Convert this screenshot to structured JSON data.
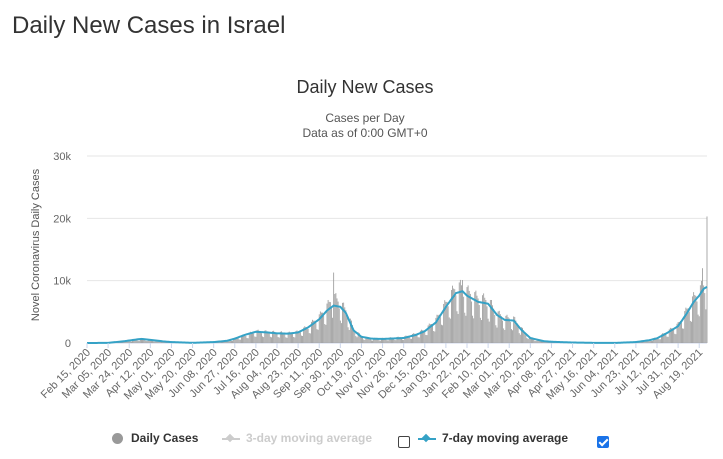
{
  "page": {
    "title": "Daily New Cases in Israel"
  },
  "chart": {
    "title": "Daily New Cases",
    "subtitle_line1": "Cases per Day",
    "subtitle_line2": "Data as of 0:00 GMT+0"
  },
  "legend": {
    "daily_cases": "Daily Cases",
    "ma3": "3-day moving average",
    "ma7": "7-day moving average",
    "ma3_checked": false,
    "ma7_checked": true
  },
  "colors": {
    "bars": "#999999",
    "ma7": "#35a2c6",
    "ma3_disabled": "#cccccc",
    "grid": "#e6e6e6"
  },
  "chart_data": {
    "type": "bar",
    "title": "Daily New Cases",
    "subtitle": [
      "Cases per Day",
      "Data as of 0:00 GMT+0"
    ],
    "xlabel": "",
    "ylabel": "Novel Coronavirus Daily Cases",
    "ylim": [
      0,
      30000
    ],
    "yticks": [
      0,
      10000,
      20000,
      30000
    ],
    "ytick_labels": [
      "0",
      "10k",
      "20k",
      "30k"
    ],
    "x_start": "2020-02-15",
    "x_end": "2021-08-26",
    "xtick_labels": [
      "Feb 15, 2020",
      "Mar 05, 2020",
      "Mar 24, 2020",
      "Apr 12, 2020",
      "May 01, 2020",
      "May 20, 2020",
      "Jun 08, 2020",
      "Jun 27, 2020",
      "Jul 16, 2020",
      "Aug 04, 2020",
      "Aug 23, 2020",
      "Sep 11, 2020",
      "Sep 30, 2020",
      "Oct 19, 2020",
      "Nov 07, 2020",
      "Nov 26, 2020",
      "Dec 15, 2020",
      "Jan 03, 2021",
      "Jan 22, 2021",
      "Feb 10, 2021",
      "Mar 01, 2021",
      "Mar 20, 2021",
      "Apr 08, 2021",
      "Apr 27, 2021",
      "May 16, 2021",
      "Jun 04, 2021",
      "Jun 23, 2021",
      "Jul 12, 2021",
      "Jul 31, 2021",
      "Aug 19, 2021"
    ],
    "series": [
      {
        "name": "Daily Cases",
        "kind": "bar",
        "points": [
          [
            "2020-02-15",
            0
          ],
          [
            "2020-03-05",
            10
          ],
          [
            "2020-03-20",
            300
          ],
          [
            "2020-03-30",
            500
          ],
          [
            "2020-04-03",
            700
          ],
          [
            "2020-04-12",
            500
          ],
          [
            "2020-04-24",
            250
          ],
          [
            "2020-05-01",
            150
          ],
          [
            "2020-05-20",
            40
          ],
          [
            "2020-06-08",
            200
          ],
          [
            "2020-06-20",
            400
          ],
          [
            "2020-06-27",
            700
          ],
          [
            "2020-07-06",
            1200
          ],
          [
            "2020-07-16",
            1800
          ],
          [
            "2020-07-26",
            1700
          ],
          [
            "2020-08-04",
            1600
          ],
          [
            "2020-08-14",
            1500
          ],
          [
            "2020-08-23",
            1700
          ],
          [
            "2020-09-01",
            2500
          ],
          [
            "2020-09-11",
            4000
          ],
          [
            "2020-09-18",
            5500
          ],
          [
            "2020-09-24",
            7000
          ],
          [
            "2020-09-30",
            6000
          ],
          [
            "2020-10-05",
            5000
          ],
          [
            "2020-10-12",
            2200
          ],
          [
            "2020-10-19",
            1000
          ],
          [
            "2020-10-28",
            700
          ],
          [
            "2020-11-07",
            700
          ],
          [
            "2020-11-26",
            900
          ],
          [
            "2020-12-07",
            1400
          ],
          [
            "2020-12-15",
            2000
          ],
          [
            "2020-12-25",
            3500
          ],
          [
            "2021-01-03",
            6000
          ],
          [
            "2021-01-12",
            8500
          ],
          [
            "2021-01-18",
            8400
          ],
          [
            "2021-01-22",
            7800
          ],
          [
            "2021-02-01",
            6800
          ],
          [
            "2021-02-10",
            6500
          ],
          [
            "2021-02-18",
            4500
          ],
          [
            "2021-02-25",
            3800
          ],
          [
            "2021-03-05",
            3700
          ],
          [
            "2021-03-12",
            2200
          ],
          [
            "2021-03-20",
            800
          ],
          [
            "2021-04-01",
            300
          ],
          [
            "2021-04-08",
            200
          ],
          [
            "2021-04-27",
            80
          ],
          [
            "2021-05-16",
            30
          ],
          [
            "2021-06-04",
            15
          ],
          [
            "2021-06-23",
            150
          ],
          [
            "2021-07-05",
            500
          ],
          [
            "2021-07-12",
            800
          ],
          [
            "2021-07-22",
            1800
          ],
          [
            "2021-07-31",
            2800
          ],
          [
            "2021-08-08",
            5000
          ],
          [
            "2021-08-14",
            6800
          ],
          [
            "2021-08-19",
            7800
          ],
          [
            "2021-08-23",
            8800
          ],
          [
            "2021-08-25",
            9000
          ],
          [
            "2021-08-26",
            9200
          ]
        ],
        "notable_peaks": [
          [
            "2020-09-24",
            11300
          ],
          [
            "2021-01-18",
            10100
          ],
          [
            "2021-08-22",
            12000
          ],
          [
            "2021-08-26",
            20300
          ]
        ]
      },
      {
        "name": "7-day moving average",
        "kind": "line",
        "points": [
          [
            "2020-02-15",
            0
          ],
          [
            "2020-03-05",
            20
          ],
          [
            "2020-03-20",
            300
          ],
          [
            "2020-04-01",
            600
          ],
          [
            "2020-04-05",
            650
          ],
          [
            "2020-04-12",
            500
          ],
          [
            "2020-04-24",
            250
          ],
          [
            "2020-05-01",
            150
          ],
          [
            "2020-05-20",
            30
          ],
          [
            "2020-06-08",
            150
          ],
          [
            "2020-06-20",
            350
          ],
          [
            "2020-06-27",
            700
          ],
          [
            "2020-07-06",
            1300
          ],
          [
            "2020-07-16",
            1800
          ],
          [
            "2020-07-26",
            1700
          ],
          [
            "2020-08-04",
            1550
          ],
          [
            "2020-08-14",
            1500
          ],
          [
            "2020-08-23",
            1700
          ],
          [
            "2020-09-01",
            2500
          ],
          [
            "2020-09-11",
            3800
          ],
          [
            "2020-09-18",
            5200
          ],
          [
            "2020-09-24",
            6000
          ],
          [
            "2020-09-30",
            5800
          ],
          [
            "2020-10-05",
            4800
          ],
          [
            "2020-10-12",
            2000
          ],
          [
            "2020-10-19",
            1000
          ],
          [
            "2020-10-28",
            700
          ],
          [
            "2020-11-07",
            650
          ],
          [
            "2020-11-26",
            800
          ],
          [
            "2020-12-07",
            1300
          ],
          [
            "2020-12-15",
            1900
          ],
          [
            "2020-12-25",
            3300
          ],
          [
            "2021-01-03",
            5800
          ],
          [
            "2021-01-12",
            8000
          ],
          [
            "2021-01-18",
            8300
          ],
          [
            "2021-01-22",
            7600
          ],
          [
            "2021-02-01",
            6600
          ],
          [
            "2021-02-10",
            6300
          ],
          [
            "2021-02-18",
            4500
          ],
          [
            "2021-02-25",
            3700
          ],
          [
            "2021-03-05",
            3600
          ],
          [
            "2021-03-12",
            2100
          ],
          [
            "2021-03-20",
            800
          ],
          [
            "2021-04-01",
            300
          ],
          [
            "2021-04-08",
            200
          ],
          [
            "2021-04-27",
            80
          ],
          [
            "2021-05-16",
            25
          ],
          [
            "2021-06-04",
            15
          ],
          [
            "2021-06-23",
            150
          ],
          [
            "2021-07-05",
            450
          ],
          [
            "2021-07-12",
            750
          ],
          [
            "2021-07-22",
            1700
          ],
          [
            "2021-07-31",
            2700
          ],
          [
            "2021-08-08",
            4800
          ],
          [
            "2021-08-14",
            6600
          ],
          [
            "2021-08-19",
            7600
          ],
          [
            "2021-08-23",
            8700
          ],
          [
            "2021-08-26",
            9000
          ]
        ]
      }
    ],
    "legend_position": "bottom",
    "grid": true
  }
}
